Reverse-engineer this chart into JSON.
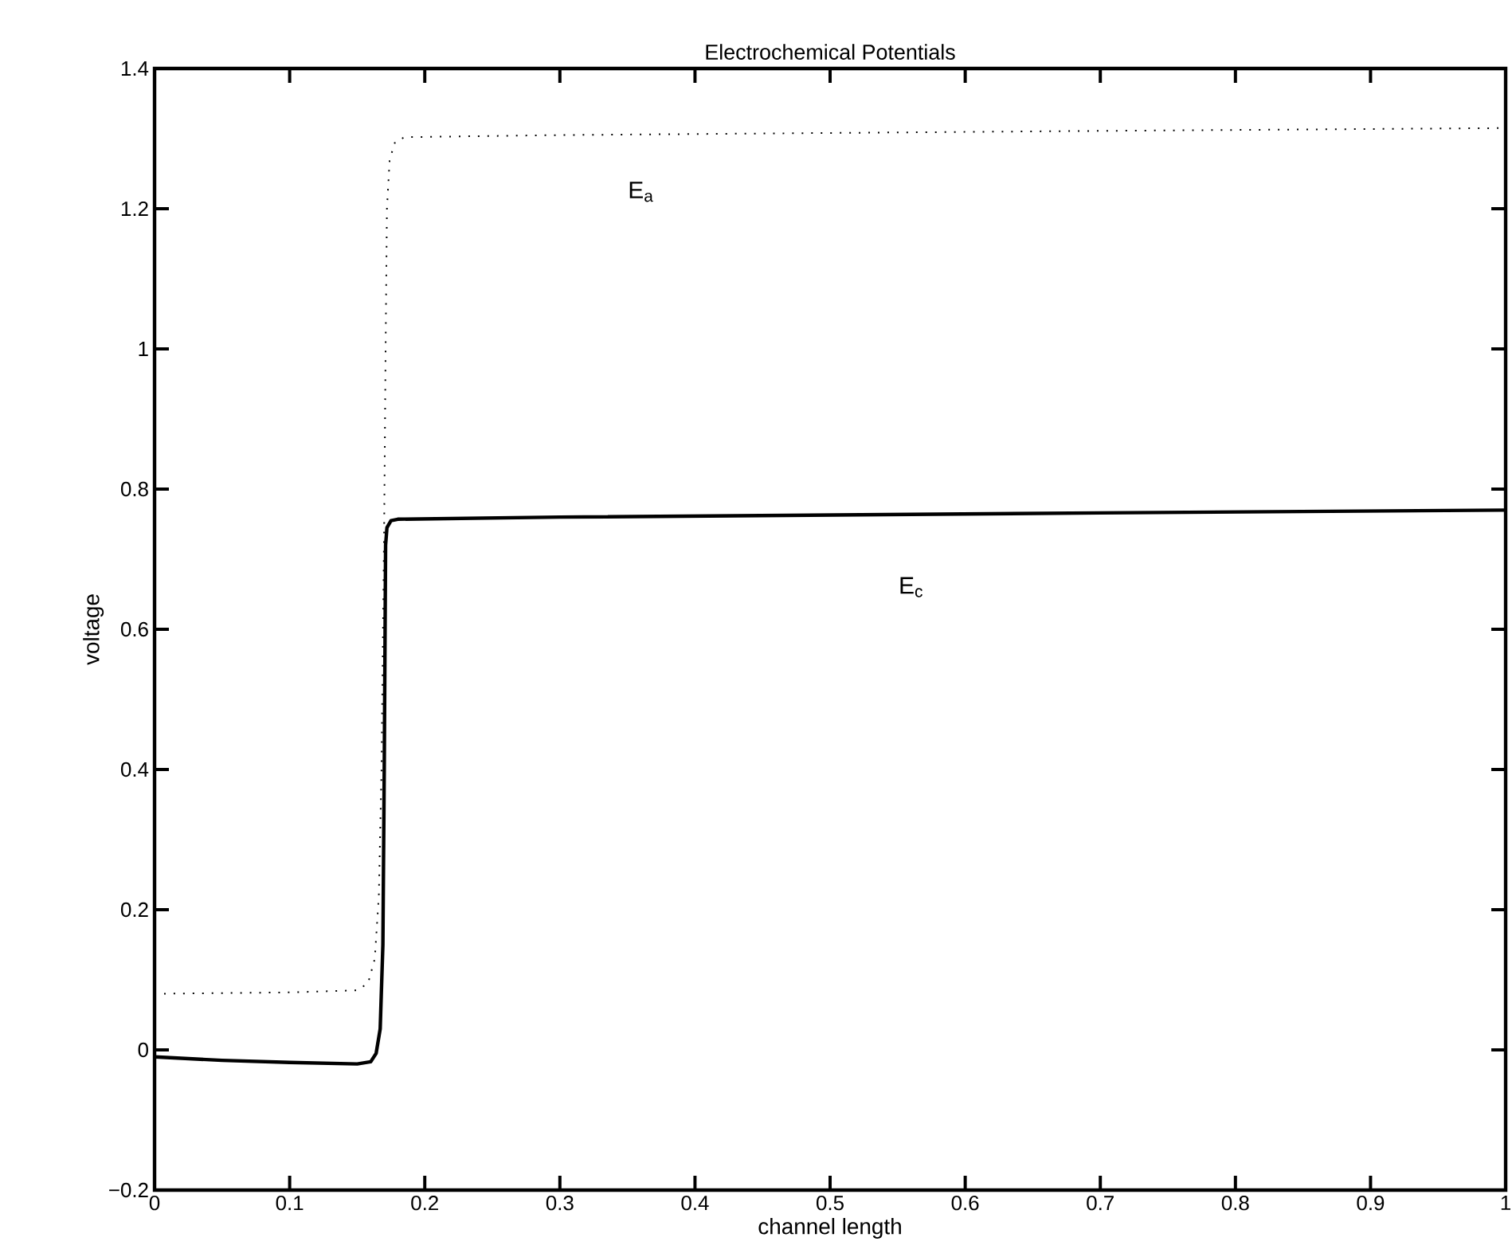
{
  "chart_data": {
    "type": "line",
    "title": "Electrochemical Potentials",
    "xlabel": "channel length",
    "ylabel": "voltage",
    "xlim": [
      0,
      1
    ],
    "ylim": [
      -0.2,
      1.4
    ],
    "xticks": [
      0,
      0.1,
      0.2,
      0.3,
      0.4,
      0.5,
      0.6,
      0.7,
      0.8,
      0.9,
      1
    ],
    "yticks": [
      {
        "value": -0.2,
        "label": "−0.2"
      },
      0,
      0.2,
      0.4,
      0.6,
      0.8,
      1,
      1.2,
      1.4
    ],
    "grid": false,
    "marker": "none",
    "series": [
      {
        "name": "E$_{a}$",
        "color": "#000000",
        "line_style": "dotted",
        "x": [
          0,
          0.05,
          0.1,
          0.15,
          0.158,
          0.163,
          0.166,
          0.168,
          0.17,
          0.171,
          0.172,
          0.174,
          0.178,
          0.185,
          0.3,
          0.5,
          0.7,
          1
        ],
        "values": [
          0.08,
          0.081,
          0.082,
          0.085,
          0.095,
          0.13,
          0.22,
          0.4,
          0.76,
          1.0,
          1.2,
          1.27,
          1.295,
          1.302,
          1.305,
          1.308,
          1.311,
          1.315
        ]
      },
      {
        "name": "E$_{c}$",
        "color": "#000000",
        "line_style": "solid",
        "x": [
          0,
          0.05,
          0.1,
          0.15,
          0.16,
          0.164,
          0.167,
          0.169,
          0.17,
          0.171,
          0.172,
          0.175,
          0.18,
          0.3,
          0.5,
          0.7,
          1
        ],
        "values": [
          -0.01,
          -0.015,
          -0.018,
          -0.02,
          -0.017,
          -0.005,
          0.03,
          0.15,
          0.4,
          0.72,
          0.745,
          0.755,
          0.757,
          0.76,
          0.763,
          0.766,
          0.77
        ]
      }
    ]
  }
}
